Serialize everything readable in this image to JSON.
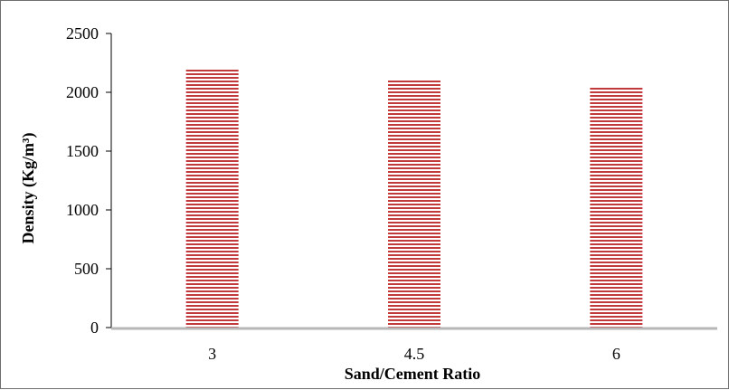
{
  "chart_data": {
    "type": "bar",
    "categories": [
      "3",
      "4.5",
      "6"
    ],
    "values": [
      2200,
      2110,
      2045
    ],
    "xlabel": "Sand/Cement Ratio",
    "ylabel": "Density (Kg/m³)",
    "ylim": [
      0,
      2500
    ],
    "yticks": [
      0,
      500,
      1000,
      1500,
      2000,
      2500
    ],
    "grid": false,
    "legend": "none",
    "colors": {
      "bar_stripe": "#c0393b",
      "bar_fill": "#ffffff",
      "axis_line": "#b7b7b7",
      "y_axis_line": "#000000"
    }
  }
}
